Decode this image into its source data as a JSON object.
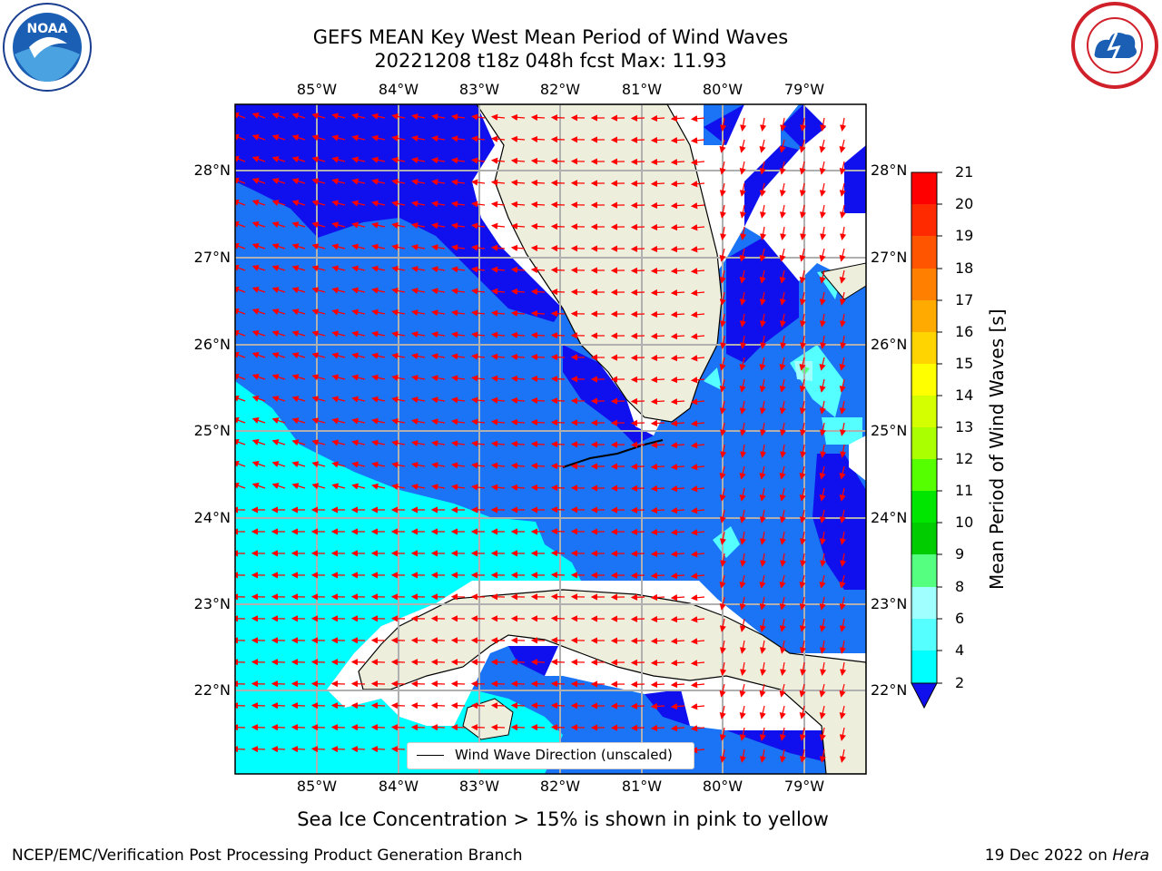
{
  "title": {
    "line1": "GEFS MEAN Key West Mean Period of Wind Waves",
    "line2": "20221208 t18z 048h fcst   Max: 11.93"
  },
  "logos": {
    "left": {
      "name": "noaa-logo",
      "text": "NOAA"
    },
    "right": {
      "name": "nws-logo"
    }
  },
  "map": {
    "lon_ticks_top": [
      "85°W",
      "84°W",
      "83°W",
      "82°W",
      "81°W",
      "80°W",
      "79°W"
    ],
    "lon_ticks_bottom": [
      "85°W",
      "84°W",
      "83°W",
      "82°W",
      "81°W",
      "80°W",
      "79°W"
    ],
    "lat_ticks_left": [
      "28°N",
      "27°N",
      "26°N",
      "25°N",
      "24°N",
      "23°N",
      "22°N"
    ],
    "lat_ticks_right": [
      "28°N",
      "27°N",
      "26°N",
      "25°N",
      "24°N",
      "23°N",
      "22°N"
    ],
    "legend_label": "Wind Wave Direction (unscaled)",
    "colors": {
      "land": "#eeeedd",
      "band_2_4": "#1a74f5",
      "band_lt2": "#1010ee",
      "band_4_6": "#00ffff",
      "band_6_8": "#55ffff",
      "band_8_9": "#a0ffff",
      "arrow": "#ff0000",
      "grid": "#b0b0b0"
    }
  },
  "colorbar": {
    "label": "Mean Period of Wind Waves [s]",
    "ticks": [
      "21",
      "20",
      "19",
      "18",
      "17",
      "16",
      "15",
      "14",
      "13",
      "12",
      "11",
      "10",
      "9",
      "8",
      "6",
      "4",
      "2"
    ],
    "colors": [
      "#ff0000",
      "#ff2a00",
      "#ff5500",
      "#ff8000",
      "#ffaa00",
      "#ffd400",
      "#ffff00",
      "#d4ff00",
      "#aaff00",
      "#55ff00",
      "#00e600",
      "#00cc00",
      "#55ff80",
      "#a0ffff",
      "#55ffff",
      "#00ffff",
      "#1a74f5"
    ],
    "under_color": "#1010ee"
  },
  "caption": "Sea Ice Concentration > 15% is shown in pink to yellow",
  "footer": {
    "left": "NCEP/EMC/Verification Post Processing Product Generation Branch",
    "right_date": "19 Dec 2022 on ",
    "right_host": "Hera"
  }
}
